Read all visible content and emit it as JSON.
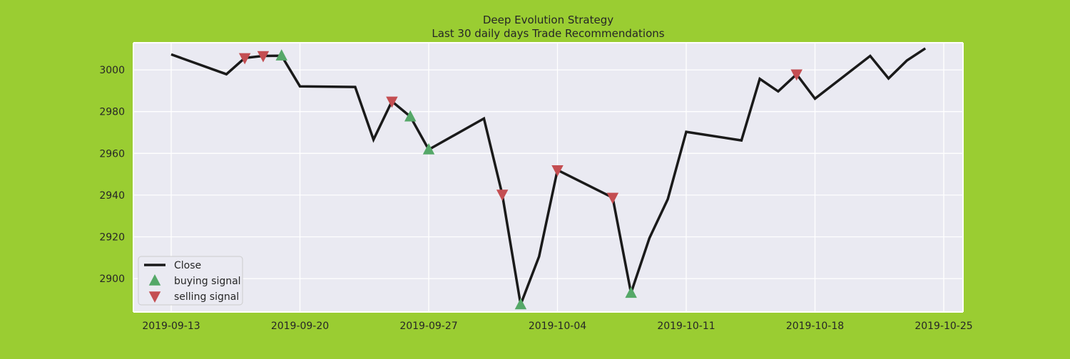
{
  "chart_data": {
    "type": "line",
    "title": "Deep Evolution Strategy",
    "subtitle": "Last 30 daily days Trade Recommendations",
    "xlabel": "",
    "ylabel": "",
    "xlim": [
      "2019-09-13",
      "2019-10-25"
    ],
    "ylim": [
      2884,
      3013
    ],
    "x_ticks": [
      "2019-09-13",
      "2019-09-20",
      "2019-09-27",
      "2019-10-04",
      "2019-10-11",
      "2019-10-18",
      "2019-10-25"
    ],
    "y_ticks": [
      2900,
      2920,
      2940,
      2960,
      2980,
      3000
    ],
    "grid": true,
    "legend": "lower-left",
    "series": [
      {
        "name": "Close",
        "color": "#1a1a1a",
        "x": [
          "2019-09-13",
          "2019-09-16",
          "2019-09-17",
          "2019-09-18",
          "2019-09-19",
          "2019-09-20",
          "2019-09-23",
          "2019-09-24",
          "2019-09-25",
          "2019-09-26",
          "2019-09-27",
          "2019-09-30",
          "2019-10-01",
          "2019-10-02",
          "2019-10-03",
          "2019-10-04",
          "2019-10-07",
          "2019-10-08",
          "2019-10-09",
          "2019-10-10",
          "2019-10-11",
          "2019-10-14",
          "2019-10-15",
          "2019-10-16",
          "2019-10-17",
          "2019-10-18",
          "2019-10-21",
          "2019-10-22",
          "2019-10-23",
          "2019-10-24"
        ],
        "y": [
          3007.4,
          2997.9,
          3005.7,
          3006.7,
          3006.8,
          2992.1,
          2991.8,
          2966.6,
          2984.9,
          2977.6,
          2961.8,
          2976.7,
          2940.3,
          2887.6,
          2910.6,
          2952.0,
          2938.8,
          2893.1,
          2919.4,
          2938.1,
          2970.3,
          2966.2,
          2995.7,
          2989.7,
          2997.9,
          2986.2,
          3006.7,
          2995.9,
          3004.5,
          3010.3
        ]
      }
    ],
    "markers": [
      {
        "name": "buying signal",
        "shape": "triangle-up",
        "color": "#55a868",
        "x": [
          "2019-09-19",
          "2019-09-26",
          "2019-09-27",
          "2019-10-02",
          "2019-10-08"
        ],
        "y": [
          3006.8,
          2977.6,
          2961.8,
          2887.6,
          2893.1
        ]
      },
      {
        "name": "selling signal",
        "shape": "triangle-down",
        "color": "#c44e52",
        "x": [
          "2019-09-17",
          "2019-09-18",
          "2019-09-25",
          "2019-10-01",
          "2019-10-04",
          "2019-10-07",
          "2019-10-17"
        ],
        "y": [
          3005.7,
          3006.7,
          2984.9,
          2940.3,
          2952.0,
          2938.8,
          2997.9
        ]
      }
    ],
    "style": {
      "plot_background": "#eaeaf2",
      "grid_color": "#ffffff",
      "figure_background": "#9acd32"
    }
  }
}
